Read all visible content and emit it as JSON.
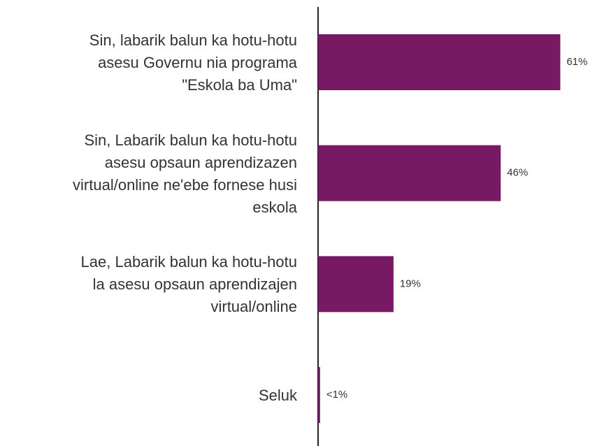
{
  "chart_data": {
    "type": "hbar",
    "categories": [
      "Sin, labarik balun ka hotu-hotu\nasesu Governu nia programa\n\"Eskola ba Uma\"",
      "Sin, Labarik balun ka hotu-hotu\nasesu opsaun aprendizazen\nvirtual/online ne'ebe fornese husi\neskola",
      "Lae, Labarik balun ka hotu-hotu\nla asesu opsaun aprendizajen\nvirtual/online",
      "Seluk"
    ],
    "values": [
      61,
      46,
      19,
      0.5
    ],
    "value_labels": [
      "61%",
      "46%",
      "19%",
      "<1%"
    ],
    "color": "#771a63",
    "xlim": [
      0,
      100
    ]
  }
}
